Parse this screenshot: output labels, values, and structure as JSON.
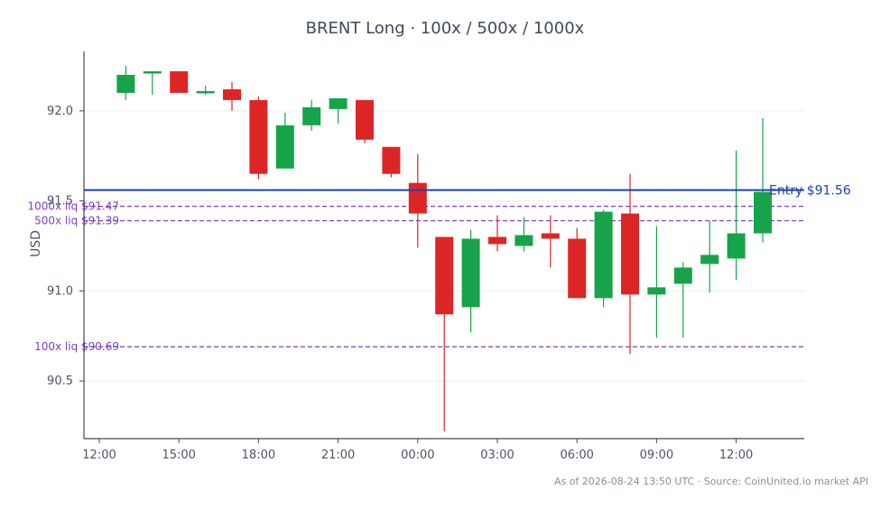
{
  "title": "BRENT Long · 100x / 500x / 1000x",
  "footer": "As of 2026-08-24 13:50 UTC · Source: CoinUnited.io market API",
  "colors": {
    "up": "#16a34a",
    "down": "#dc2626",
    "entry": "#1e40af",
    "liq": "#7e3fc8",
    "axis": "#3f4a5a",
    "grid": "#eeeeee"
  },
  "chart_data": {
    "type": "candlestick",
    "title": "BRENT Long · 100x / 500x / 1000x",
    "xlabel": "",
    "ylabel": "USD",
    "ylim": [
      90.18,
      92.33
    ],
    "grid": "horizontal",
    "x_ticks": [
      "12:00",
      "15:00",
      "18:00",
      "21:00",
      "00:00",
      "03:00",
      "06:00",
      "09:00",
      "12:00"
    ],
    "y_ticks": [
      "90.5",
      "91.0",
      "91.5",
      "92.0"
    ],
    "y_tick_values": [
      90.5,
      91.0,
      91.5,
      92.0
    ],
    "candles": [
      {
        "t": "13:00",
        "o": 92.1,
        "h": 92.25,
        "l": 92.06,
        "c": 92.2
      },
      {
        "t": "14:00",
        "o": 92.21,
        "h": 92.22,
        "l": 92.09,
        "c": 92.22
      },
      {
        "t": "15:00",
        "o": 92.22,
        "h": 92.22,
        "l": 92.1,
        "c": 92.1
      },
      {
        "t": "16:00",
        "o": 92.1,
        "h": 92.14,
        "l": 92.09,
        "c": 92.11
      },
      {
        "t": "17:00",
        "o": 92.12,
        "h": 92.16,
        "l": 92.0,
        "c": 92.06
      },
      {
        "t": "18:00",
        "o": 92.06,
        "h": 92.08,
        "l": 91.62,
        "c": 91.65
      },
      {
        "t": "19:00",
        "o": 91.68,
        "h": 91.99,
        "l": 91.68,
        "c": 91.92
      },
      {
        "t": "20:00",
        "o": 91.92,
        "h": 92.06,
        "l": 91.89,
        "c": 92.02
      },
      {
        "t": "21:00",
        "o": 92.01,
        "h": 92.07,
        "l": 91.93,
        "c": 92.07
      },
      {
        "t": "22:00",
        "o": 92.06,
        "h": 92.06,
        "l": 91.82,
        "c": 91.84
      },
      {
        "t": "23:00",
        "o": 91.8,
        "h": 91.8,
        "l": 91.63,
        "c": 91.65
      },
      {
        "t": "00:00",
        "o": 91.6,
        "h": 91.76,
        "l": 91.24,
        "c": 91.43
      },
      {
        "t": "01:00",
        "o": 91.3,
        "h": 91.3,
        "l": 90.22,
        "c": 90.87
      },
      {
        "t": "02:00",
        "o": 90.91,
        "h": 91.34,
        "l": 90.77,
        "c": 91.29
      },
      {
        "t": "03:00",
        "o": 91.3,
        "h": 91.42,
        "l": 91.22,
        "c": 91.26
      },
      {
        "t": "04:00",
        "o": 91.25,
        "h": 91.41,
        "l": 91.22,
        "c": 91.31
      },
      {
        "t": "05:00",
        "o": 91.32,
        "h": 91.42,
        "l": 91.13,
        "c": 91.29
      },
      {
        "t": "06:00",
        "o": 91.29,
        "h": 91.35,
        "l": 90.96,
        "c": 90.96
      },
      {
        "t": "07:00",
        "o": 90.96,
        "h": 91.45,
        "l": 90.91,
        "c": 91.44
      },
      {
        "t": "08:00",
        "o": 91.43,
        "h": 91.65,
        "l": 90.65,
        "c": 90.98
      },
      {
        "t": "09:00",
        "o": 90.98,
        "h": 91.36,
        "l": 90.74,
        "c": 91.02
      },
      {
        "t": "10:00",
        "o": 91.04,
        "h": 91.16,
        "l": 90.74,
        "c": 91.13
      },
      {
        "t": "11:00",
        "o": 91.15,
        "h": 91.39,
        "l": 90.99,
        "c": 91.2
      },
      {
        "t": "12:00",
        "o": 91.18,
        "h": 91.78,
        "l": 91.06,
        "c": 91.32
      },
      {
        "t": "13:00",
        "o": 91.32,
        "h": 91.96,
        "l": 91.27,
        "c": 91.55
      }
    ],
    "entry": {
      "label": "Entry $91.56",
      "value": 91.56
    },
    "liquidations": [
      {
        "label": "1000x liq $91.47",
        "value": 91.47
      },
      {
        "label": "500x liq $91.39",
        "value": 91.39
      },
      {
        "label": "100x liq $90.69",
        "value": 90.69
      }
    ]
  }
}
